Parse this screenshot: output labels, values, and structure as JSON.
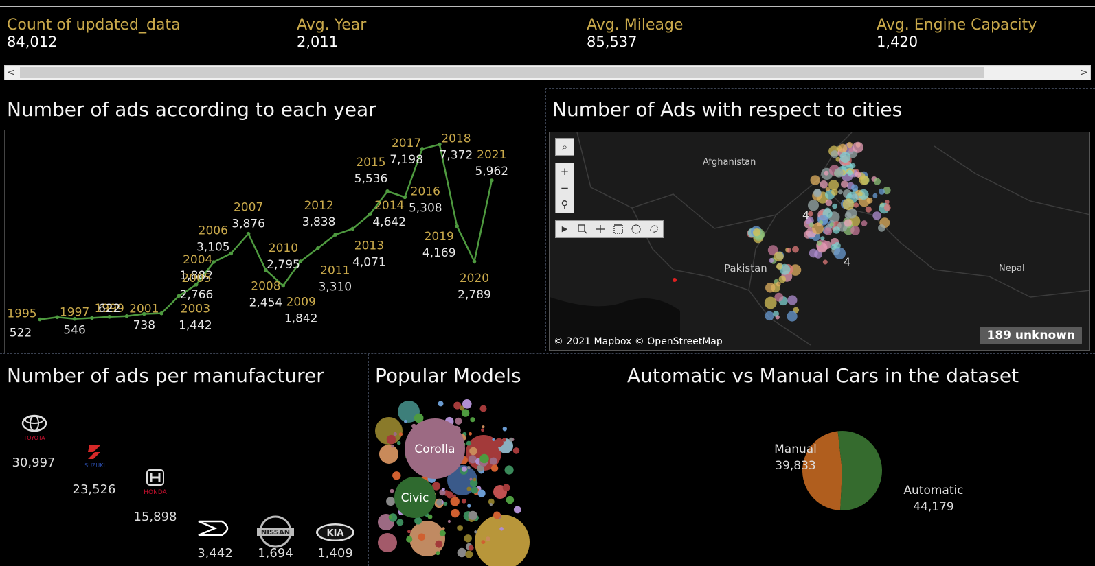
{
  "kpis": [
    {
      "label": "Count of updated_data",
      "value": "84,012"
    },
    {
      "label": "Avg. Year",
      "value": "2,011"
    },
    {
      "label": "Avg. Mileage",
      "value": "85,537"
    },
    {
      "label": "Avg. Engine Capacity",
      "value": "1,420"
    }
  ],
  "scrollbar": {
    "left_arrow": "<",
    "right_arrow": ">"
  },
  "titles": {
    "year_chart": "Number of ads according to each year",
    "city_map": "Number of Ads with respect to cities",
    "manufacturer": "Number of ads per manufacturer",
    "models": "Popular Models",
    "transmission": "Automatic vs Manual Cars in the dataset"
  },
  "map": {
    "labels": {
      "afghanistan": "Afghanistan",
      "pakistan": "Pakistan",
      "nepal": "Nepal"
    },
    "cluster_labels": [
      "4",
      "4"
    ],
    "attribution": "© 2021 Mapbox © OpenStreetMap",
    "unknown_badge": "189 unknown",
    "tools": {
      "search": "⌕",
      "zoom_in": "+",
      "zoom_out": "−",
      "pin": "⚲",
      "play": "▶"
    }
  },
  "manufacturers": [
    {
      "name": "TOYOTA",
      "value": "30,997"
    },
    {
      "name": "SUZUKI",
      "value": "23,526"
    },
    {
      "name": "HONDA",
      "value": "15,898"
    },
    {
      "name": "DAIHATSU",
      "value": "3,442"
    },
    {
      "name": "NISSAN",
      "value": "1,694"
    },
    {
      "name": "KIA",
      "value": "1,409"
    }
  ],
  "models": {
    "corolla": "Corolla",
    "civic": "Civic"
  },
  "colors": {
    "line": "#4e9a3f",
    "year_label": "#c9a94b",
    "manual": "#b05e1e",
    "automatic": "#356b2e"
  },
  "chart_data": [
    {
      "type": "line",
      "title": "Number of ads according to each year",
      "x": [
        "1995",
        "1996",
        "1997",
        "1998",
        "1999",
        "2000",
        "2001",
        "2002",
        "2003",
        "2004",
        "2005",
        "2006",
        "2007",
        "2008",
        "2009",
        "2010",
        "2011",
        "2012",
        "2013",
        "2014",
        "2015",
        "2016",
        "2017",
        "2018",
        "2019",
        "2020",
        "2021"
      ],
      "values": [
        522,
        610,
        546,
        580,
        622,
        650,
        738,
        760,
        1442,
        1882,
        2766,
        3105,
        3876,
        2454,
        1842,
        2795,
        3310,
        3838,
        4071,
        4642,
        5536,
        5308,
        7198,
        7372,
        4169,
        2789,
        5962
      ],
      "labeled_years": [
        "1995",
        "1997",
        "1999",
        "2001",
        "2003",
        "2004",
        "2005",
        "2006",
        "2007",
        "2008",
        "2009",
        "2010",
        "2011",
        "2012",
        "2013",
        "2014",
        "2015",
        "2016",
        "2017",
        "2018",
        "2019",
        "2020",
        "2021"
      ],
      "value_labels": {
        "1995": "522",
        "1997": "546",
        "1999": "622",
        "2001": "738",
        "2003": "1,442",
        "2004": "1,882",
        "2005": "2,766",
        "2006": "3,105",
        "2007": "3,876",
        "2008": "2,454",
        "2009": "1,842",
        "2010": "2,795",
        "2011": "3,310",
        "2012": "3,838",
        "2013": "4,071",
        "2014": "4,642",
        "2015": "5,536",
        "2016": "5,308",
        "2017": "7,198",
        "2018": "7,372",
        "2019": "4,169",
        "2020": "2,789",
        "2021": "5,962"
      },
      "ylim": [
        0,
        7600
      ]
    },
    {
      "type": "bar",
      "title": "Number of ads per manufacturer",
      "categories": [
        "TOYOTA",
        "SUZUKI",
        "HONDA",
        "DAIHATSU",
        "NISSAN",
        "KIA"
      ],
      "values": [
        30997,
        23526,
        15898,
        3442,
        1694,
        1409
      ]
    },
    {
      "type": "pie",
      "title": "Automatic vs Manual Cars in the dataset",
      "categories": [
        "Manual",
        "Automatic"
      ],
      "values": [
        39833,
        44179
      ],
      "value_labels": [
        "39,833",
        "44,179"
      ]
    }
  ]
}
